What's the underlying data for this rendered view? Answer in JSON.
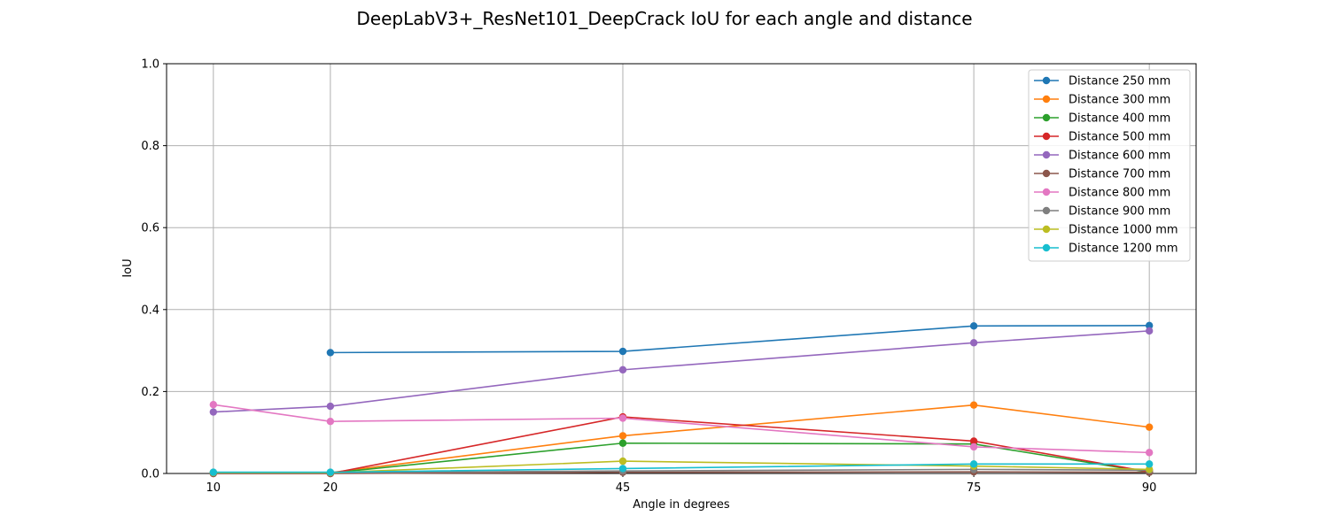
{
  "chart_data": {
    "type": "line",
    "title": "DeepLabV3+_ResNet101_DeepCrack IoU for each angle and distance",
    "xlabel": "Angle in degrees",
    "ylabel": "IoU",
    "x": [
      10,
      20,
      45,
      75,
      90
    ],
    "x_ticks": [
      "10",
      "20",
      "45",
      "75",
      "90"
    ],
    "xlim": [
      6,
      94
    ],
    "ylim": [
      0,
      1.0
    ],
    "y_ticks": [
      "0.0",
      "0.2",
      "0.4",
      "0.6",
      "0.8",
      "1.0"
    ],
    "grid": true,
    "legend_position": "top-right",
    "series": [
      {
        "name": "Distance 250 mm",
        "color": "#1f77b4",
        "values": [
          null,
          0.295,
          0.298,
          0.36,
          0.361
        ]
      },
      {
        "name": "Distance 300 mm",
        "color": "#ff7f0e",
        "values": [
          0.002,
          0.002,
          0.092,
          0.167,
          0.113
        ]
      },
      {
        "name": "Distance 400 mm",
        "color": "#2ca02c",
        "values": [
          0.001,
          0.001,
          0.074,
          0.072,
          0.003
        ]
      },
      {
        "name": "Distance 500 mm",
        "color": "#d62728",
        "values": [
          0.0,
          0.0,
          0.138,
          0.079,
          0.004
        ]
      },
      {
        "name": "Distance 600 mm",
        "color": "#9467bd",
        "values": [
          0.15,
          0.164,
          0.253,
          0.319,
          0.348
        ]
      },
      {
        "name": "Distance 700 mm",
        "color": "#8c564b",
        "values": [
          0.0,
          0.0,
          0.003,
          0.004,
          0.003
        ]
      },
      {
        "name": "Distance 800 mm",
        "color": "#e377c2",
        "values": [
          0.168,
          0.127,
          0.135,
          0.065,
          0.051
        ]
      },
      {
        "name": "Distance 900 mm",
        "color": "#7f7f7f",
        "values": [
          0.002,
          0.002,
          0.006,
          0.01,
          0.008
        ]
      },
      {
        "name": "Distance 1000 mm",
        "color": "#bcbd22",
        "values": [
          0.002,
          0.002,
          0.03,
          0.018,
          0.01
        ]
      },
      {
        "name": "Distance 1200 mm",
        "color": "#17becf",
        "values": [
          0.003,
          0.003,
          0.012,
          0.023,
          0.023
        ]
      }
    ]
  }
}
